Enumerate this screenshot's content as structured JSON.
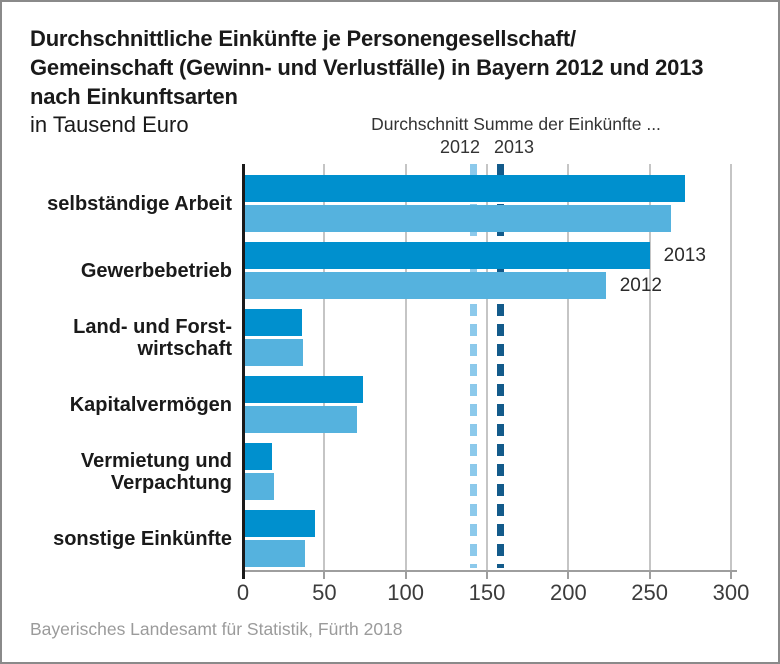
{
  "header": {
    "title_lines": [
      "Durchschnittliche Einkünfte je Personengesellschaft/",
      "Gemeinschaft (Gewinn- und Verlustfälle) in Bayern 2012 und 2013",
      "nach Einkunftsarten"
    ],
    "subtitle": "in Tausend Euro"
  },
  "annotation": {
    "title": "Durchschnitt Summe der Einkünfte ...",
    "left_year": "2012",
    "right_year": "2013"
  },
  "footer": {
    "source": "Bayerisches Landesamt für Statistik, Fürth 2018"
  },
  "colors": {
    "bar_2013": "#0090ce",
    "bar_2012": "#55b2de",
    "reference_2012": "#8cc9eb",
    "reference_2013": "#135b8b",
    "gridline": "#c5c5c5",
    "axis": "#9e9e9e",
    "border": "#8a8a8a"
  },
  "chart_data": {
    "type": "bar",
    "orientation": "horizontal",
    "title": "Durchschnittliche Einkünfte je Personengesellschaft/Gemeinschaft (Gewinn- und Verlustfälle) in Bayern 2012 und 2013 nach Einkunftsarten",
    "subtitle_units": "in Tausend Euro",
    "categories": [
      [
        "selbständige Arbeit"
      ],
      [
        "Gewerbebetrieb"
      ],
      [
        "Land- und Forst-",
        "wirtschaft"
      ],
      [
        "Kapitalvermögen"
      ],
      [
        "Vermietung und",
        "Verpachtung"
      ],
      [
        "sonstige Einkünfte"
      ]
    ],
    "series": [
      {
        "name": "2013",
        "color": "#0090ce",
        "values": [
          272,
          250,
          36,
          74,
          18,
          44
        ]
      },
      {
        "name": "2012",
        "color": "#55b2de",
        "values": [
          263,
          223,
          37,
          70,
          19,
          38
        ]
      }
    ],
    "reference_lines_title": "Durchschnitt Summe der Einkünfte ...",
    "reference_lines": [
      {
        "label": "2012",
        "value": 142,
        "color": "#8cc9eb"
      },
      {
        "label": "2013",
        "value": 158,
        "color": "#135b8b"
      }
    ],
    "xlim": [
      0,
      300
    ],
    "xticks": [
      0,
      50,
      100,
      150,
      200,
      250,
      300
    ],
    "grid": true,
    "legend_position": "inline-next-to-bars",
    "source": "Bayerisches Landesamt für Statistik, Fürth 2018"
  }
}
